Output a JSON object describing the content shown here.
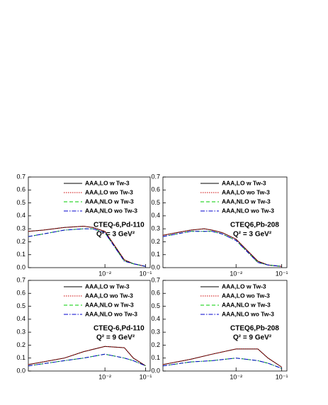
{
  "chart_data": [
    {
      "type": "line",
      "xscale": "log",
      "xlim": [
        0.00013,
        0.13
      ],
      "ylim": [
        0,
        0.7
      ],
      "yticks": [
        {
          "value": 0,
          "label": "0.0"
        },
        0.1,
        0.2,
        0.3,
        0.4,
        0.5,
        0.6,
        0.7
      ],
      "xticks": [
        {
          "value": 0.01,
          "label": "10⁻²"
        },
        {
          "value": 0.1,
          "label": "10⁻¹"
        }
      ],
      "annotations": [
        "CTEQ-6,Pd-110",
        "Q² = 3 GeV²"
      ],
      "legend": "upper right",
      "x": [
        0.00013,
        0.0003,
        0.001,
        0.003,
        0.005,
        0.01,
        0.03,
        0.05,
        0.1
      ],
      "series": [
        {
          "name": "AAA,LO w Tw-3",
          "color": "#000000",
          "dash": "solid",
          "values": [
            0.28,
            0.29,
            0.31,
            0.32,
            0.31,
            0.28,
            0.06,
            0.03,
            0.01
          ]
        },
        {
          "name": "AAA,LO wo Tw-3",
          "color": "#cc0000",
          "dash": "dotted",
          "values": [
            0.28,
            0.29,
            0.31,
            0.32,
            0.31,
            0.28,
            0.06,
            0.03,
            0.01
          ]
        },
        {
          "name": "AAA,NLO w Tw-3",
          "color": "#00cc00",
          "dash": "dashed",
          "values": [
            0.24,
            0.26,
            0.29,
            0.3,
            0.3,
            0.27,
            0.05,
            0.03,
            0.01
          ]
        },
        {
          "name": "AAA,NLO wo Tw-3",
          "color": "#0000cc",
          "dash": "dashdot",
          "values": [
            0.24,
            0.26,
            0.29,
            0.3,
            0.3,
            0.27,
            0.05,
            0.03,
            0.01
          ]
        }
      ]
    },
    {
      "type": "line",
      "xscale": "log",
      "xlim": [
        0.00025,
        0.13
      ],
      "ylim": [
        0,
        0.7
      ],
      "yticks": [
        {
          "value": 0,
          "label": "0.0"
        },
        0.1,
        0.2,
        0.3,
        0.4,
        0.5,
        0.6,
        0.7
      ],
      "xticks": [
        {
          "value": 0.01,
          "label": "10⁻²"
        },
        {
          "value": 0.1,
          "label": "10⁻¹"
        }
      ],
      "annotations": [
        "CTEQ6,Pb-208",
        "Q² = 3 GeV²"
      ],
      "legend": "upper right",
      "x": [
        0.00025,
        0.0005,
        0.001,
        0.002,
        0.003,
        0.005,
        0.01,
        0.03,
        0.05,
        0.1
      ],
      "series": [
        {
          "name": "AAA,LO w Tw-3",
          "color": "#000000",
          "dash": "solid",
          "values": [
            0.25,
            0.27,
            0.29,
            0.3,
            0.29,
            0.27,
            0.22,
            0.05,
            0.02,
            0.01
          ]
        },
        {
          "name": "AAA,LO wo Tw-3",
          "color": "#cc0000",
          "dash": "dotted",
          "values": [
            0.25,
            0.27,
            0.29,
            0.3,
            0.29,
            0.27,
            0.22,
            0.05,
            0.02,
            0.01
          ]
        },
        {
          "name": "AAA,NLO w Tw-3",
          "color": "#00cc00",
          "dash": "dashed",
          "values": [
            0.24,
            0.26,
            0.28,
            0.28,
            0.28,
            0.26,
            0.21,
            0.04,
            0.02,
            0.01
          ]
        },
        {
          "name": "AAA,NLO wo Tw-3",
          "color": "#0000cc",
          "dash": "dashdot",
          "values": [
            0.24,
            0.26,
            0.28,
            0.28,
            0.28,
            0.26,
            0.21,
            0.04,
            0.02,
            0.01
          ]
        }
      ]
    },
    {
      "type": "line",
      "xscale": "log",
      "xlim": [
        0.00013,
        0.13
      ],
      "ylim": [
        0,
        0.7
      ],
      "yticks": [
        {
          "value": 0,
          "label": "0.0"
        },
        0.1,
        0.2,
        0.3,
        0.4,
        0.5,
        0.6,
        0.7
      ],
      "xticks": [
        {
          "value": 0.01,
          "label": "10⁻²"
        },
        {
          "value": 0.1,
          "label": "10⁻¹"
        }
      ],
      "annotations": [
        "CTEQ-6,Pd-110",
        "Q² = 9 GeV²"
      ],
      "legend": "upper right",
      "x": [
        0.00013,
        0.001,
        0.003,
        0.01,
        0.03,
        0.05,
        0.1
      ],
      "series": [
        {
          "name": "AAA,LO w Tw-3",
          "color": "#000000",
          "dash": "solid",
          "values": [
            0.05,
            0.1,
            0.15,
            0.19,
            0.18,
            0.1,
            0.04
          ]
        },
        {
          "name": "AAA,LO wo Tw-3",
          "color": "#cc0000",
          "dash": "dotted",
          "values": [
            0.05,
            0.1,
            0.15,
            0.19,
            0.18,
            0.1,
            0.04
          ]
        },
        {
          "name": "AAA,NLO w Tw-3",
          "color": "#00cc00",
          "dash": "dashed",
          "values": [
            0.04,
            0.08,
            0.1,
            0.13,
            0.1,
            0.08,
            0.04
          ]
        },
        {
          "name": "AAA,NLO wo Tw-3",
          "color": "#0000cc",
          "dash": "dashdot",
          "values": [
            0.04,
            0.08,
            0.1,
            0.13,
            0.1,
            0.08,
            0.04
          ]
        }
      ]
    },
    {
      "type": "line",
      "xscale": "log",
      "xlim": [
        0.00025,
        0.13
      ],
      "ylim": [
        0,
        0.7
      ],
      "yticks": [
        {
          "value": 0,
          "label": "0.0"
        },
        0.1,
        0.2,
        0.3,
        0.4,
        0.5,
        0.6,
        0.7
      ],
      "xticks": [
        {
          "value": 0.01,
          "label": "10⁻²"
        },
        {
          "value": 0.1,
          "label": "10⁻¹"
        }
      ],
      "annotations": [
        "CTEQ6,Pb-208",
        "Q² = 9 GeV²"
      ],
      "legend": "upper right",
      "x": [
        0.00025,
        0.001,
        0.003,
        0.01,
        0.03,
        0.05,
        0.1
      ],
      "series": [
        {
          "name": "AAA,LO w Tw-3",
          "color": "#000000",
          "dash": "solid",
          "values": [
            0.05,
            0.09,
            0.13,
            0.17,
            0.17,
            0.1,
            0.03
          ]
        },
        {
          "name": "AAA,LO wo Tw-3",
          "color": "#cc0000",
          "dash": "dotted",
          "values": [
            0.05,
            0.09,
            0.13,
            0.17,
            0.17,
            0.1,
            0.03
          ]
        },
        {
          "name": "AAA,NLO w Tw-3",
          "color": "#00cc00",
          "dash": "dashed",
          "values": [
            0.04,
            0.07,
            0.08,
            0.1,
            0.08,
            0.06,
            0.02
          ]
        },
        {
          "name": "AAA,NLO wo Tw-3",
          "color": "#0000cc",
          "dash": "dashdot",
          "values": [
            0.04,
            0.07,
            0.08,
            0.1,
            0.08,
            0.06,
            0.02
          ]
        }
      ]
    }
  ]
}
